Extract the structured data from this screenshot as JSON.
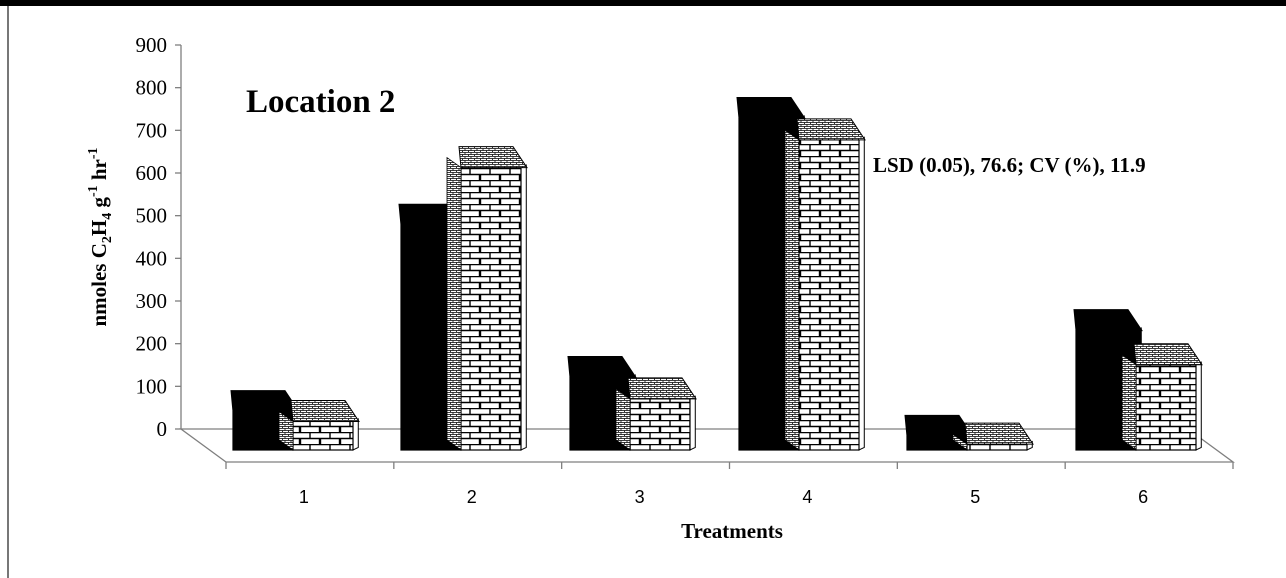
{
  "chart_data": {
    "type": "bar",
    "title": "Location 2",
    "annotation": "LSD (0.05), 76.6; CV (%), 11.9",
    "xlabel": "Treatments",
    "ylabel": {
      "prefix": "nmoles C",
      "sub1": "2",
      "mid1": "H",
      "sub2": "4",
      "mid2": " g",
      "sup1": "-1",
      "mid3": " hr",
      "sup2": "-1"
    },
    "categories": [
      "1",
      "2",
      "3",
      "4",
      "5",
      "6"
    ],
    "series": [
      {
        "values": [
          118,
          555,
          198,
          805,
          60,
          308
        ],
        "fill": "solid-black"
      },
      {
        "values": [
          95,
          690,
          148,
          755,
          42,
          228
        ],
        "fill": "brick-pattern"
      }
    ],
    "ylim": [
      0,
      900
    ],
    "yticks": [
      "0",
      "100",
      "200",
      "300",
      "400",
      "500",
      "600",
      "700",
      "800",
      "900"
    ],
    "grid": false,
    "legend": "none",
    "style": "3d-clustered-column",
    "colors": {
      "primary": "#000000",
      "secondary": "#ffffff",
      "axis": "#7f7f7f"
    }
  }
}
